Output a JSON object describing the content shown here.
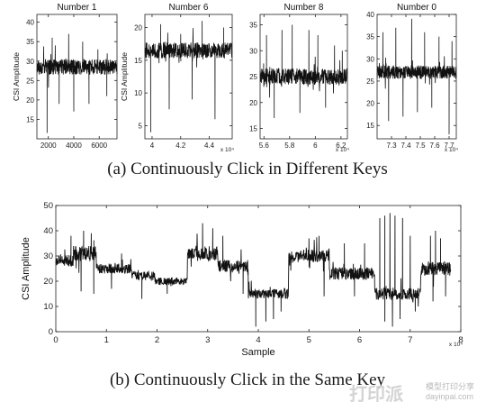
{
  "figure": {
    "caption_a": "(a) Continuously Click in Different Keys",
    "caption_b": "(b) Continuously Click in the Same Key",
    "watermark_text": "模型打印分享",
    "watermark_url": "dayinpai.com",
    "watermark_logo": "打印派"
  },
  "chart_data": [
    {
      "type": "line",
      "title": "Number 1",
      "ylabel": "CSI Amplitude",
      "xlabel": "",
      "xlim": [
        1100,
        7400
      ],
      "ylim": [
        10,
        42
      ],
      "xticks": [
        2000,
        4000,
        6000
      ],
      "xtick_labels": [
        "2000",
        "4000",
        "6000"
      ],
      "yticks": [
        15,
        20,
        25,
        30,
        35,
        40
      ],
      "ytick_labels": [
        "15",
        "20",
        "25",
        "30",
        "35",
        "40"
      ],
      "x_multiplier": "",
      "baseline": 28.5,
      "noise": 2.0,
      "spikes": [
        {
          "x": 1900,
          "y": 11.5
        },
        {
          "x": 2300,
          "y": 36
        },
        {
          "x": 2850,
          "y": 19
        },
        {
          "x": 3600,
          "y": 37
        },
        {
          "x": 4000,
          "y": 17
        },
        {
          "x": 4700,
          "y": 35
        },
        {
          "x": 5200,
          "y": 19
        },
        {
          "x": 5900,
          "y": 33
        },
        {
          "x": 6600,
          "y": 21
        }
      ],
      "series": [
        {
          "values": []
        }
      ]
    },
    {
      "type": "line",
      "title": "Number 6",
      "ylabel": "CSI Amplitude",
      "xlabel": "",
      "xlim": [
        3.95,
        4.56
      ],
      "ylim": [
        3,
        22
      ],
      "xticks": [
        4,
        4.2,
        4.4
      ],
      "xtick_labels": [
        "4",
        "4.2",
        "4.4"
      ],
      "yticks": [
        5,
        10,
        15,
        20
      ],
      "ytick_labels": [
        "5",
        "10",
        "15",
        "20"
      ],
      "x_multiplier": "x 10⁴",
      "baseline": 16.5,
      "noise": 1.2,
      "spikes": [
        {
          "x": 3.99,
          "y": 4
        },
        {
          "x": 4.06,
          "y": 20.5
        },
        {
          "x": 4.12,
          "y": 7.5
        },
        {
          "x": 4.2,
          "y": 19
        },
        {
          "x": 4.28,
          "y": 9
        },
        {
          "x": 4.35,
          "y": 21
        },
        {
          "x": 4.44,
          "y": 6
        },
        {
          "x": 4.5,
          "y": 20
        }
      ],
      "series": [
        {
          "values": []
        }
      ]
    },
    {
      "type": "line",
      "title": "Number 8",
      "ylabel": "",
      "xlabel": "",
      "xlim": [
        5.57,
        6.25
      ],
      "ylim": [
        13,
        37
      ],
      "xticks": [
        5.6,
        5.8,
        6,
        6.2
      ],
      "xtick_labels": [
        "5.6",
        "5.8",
        "6",
        "6.2"
      ],
      "yticks": [
        15,
        20,
        25,
        30,
        35
      ],
      "ytick_labels": [
        "15",
        "20",
        "25",
        "30",
        "35"
      ],
      "x_multiplier": "x 10⁴",
      "baseline": 25,
      "noise": 1.6,
      "spikes": [
        {
          "x": 5.62,
          "y": 33
        },
        {
          "x": 5.68,
          "y": 17
        },
        {
          "x": 5.74,
          "y": 34
        },
        {
          "x": 5.82,
          "y": 35
        },
        {
          "x": 5.88,
          "y": 18
        },
        {
          "x": 5.95,
          "y": 34
        },
        {
          "x": 6.02,
          "y": 33
        },
        {
          "x": 6.08,
          "y": 19
        },
        {
          "x": 6.15,
          "y": 31
        },
        {
          "x": 6.21,
          "y": 30
        }
      ],
      "series": [
        {
          "values": []
        }
      ]
    },
    {
      "type": "line",
      "title": "Number 0",
      "ylabel": "",
      "xlabel": "",
      "xlim": [
        7.2,
        7.75
      ],
      "ylim": [
        12,
        40
      ],
      "xticks": [
        7.3,
        7.4,
        7.5,
        7.6,
        7.7
      ],
      "xtick_labels": [
        "7.3",
        "7.4",
        "7.5",
        "7.6",
        "7.7"
      ],
      "yticks": [
        15,
        20,
        25,
        30,
        35,
        40
      ],
      "ytick_labels": [
        "15",
        "20",
        "25",
        "30",
        "35",
        "40"
      ],
      "x_multiplier": "x 10⁴",
      "baseline": 27,
      "noise": 1.5,
      "spikes": [
        {
          "x": 7.24,
          "y": 36
        },
        {
          "x": 7.28,
          "y": 16
        },
        {
          "x": 7.33,
          "y": 37
        },
        {
          "x": 7.38,
          "y": 17
        },
        {
          "x": 7.44,
          "y": 39
        },
        {
          "x": 7.48,
          "y": 18
        },
        {
          "x": 7.53,
          "y": 36
        },
        {
          "x": 7.58,
          "y": 19
        },
        {
          "x": 7.63,
          "y": 35
        },
        {
          "x": 7.7,
          "y": 13
        },
        {
          "x": 7.72,
          "y": 34
        }
      ],
      "series": [
        {
          "values": []
        }
      ]
    },
    {
      "type": "line",
      "title": "",
      "ylabel": "CSI Amplitude",
      "xlabel": "Sample",
      "xlim": [
        0,
        8
      ],
      "ylim": [
        0,
        50
      ],
      "xticks": [
        0,
        1,
        2,
        3,
        4,
        5,
        6,
        7,
        8
      ],
      "xtick_labels": [
        "0",
        "1",
        "2",
        "3",
        "4",
        "5",
        "6",
        "7",
        "8"
      ],
      "yticks": [
        0,
        10,
        20,
        30,
        40,
        50
      ],
      "ytick_labels": [
        "0",
        "10",
        "20",
        "30",
        "40",
        "50"
      ],
      "x_multiplier": "x 10⁴",
      "segments": [
        {
          "x0": 0.0,
          "x1": 0.35,
          "level": 28,
          "noise": 2.5
        },
        {
          "x0": 0.35,
          "x1": 0.8,
          "level": 31,
          "noise": 3.0
        },
        {
          "x0": 0.8,
          "x1": 1.5,
          "level": 25,
          "noise": 2.0
        },
        {
          "x0": 1.5,
          "x1": 1.95,
          "level": 22,
          "noise": 1.8
        },
        {
          "x0": 1.95,
          "x1": 2.6,
          "level": 20,
          "noise": 1.5
        },
        {
          "x0": 2.6,
          "x1": 3.2,
          "level": 31,
          "noise": 3.0
        },
        {
          "x0": 3.2,
          "x1": 3.8,
          "level": 26,
          "noise": 2.5
        },
        {
          "x0": 3.8,
          "x1": 4.6,
          "level": 15,
          "noise": 2.0
        },
        {
          "x0": 4.6,
          "x1": 5.4,
          "level": 30,
          "noise": 2.5
        },
        {
          "x0": 5.4,
          "x1": 6.3,
          "level": 23,
          "noise": 2.5
        },
        {
          "x0": 6.3,
          "x1": 7.2,
          "level": 15,
          "noise": 2.5
        },
        {
          "x0": 7.2,
          "x1": 7.8,
          "level": 25,
          "noise": 3.0
        }
      ],
      "spikes": [
        {
          "x": 0.3,
          "y": 38
        },
        {
          "x": 0.55,
          "y": 40
        },
        {
          "x": 0.7,
          "y": 39
        },
        {
          "x": 0.5,
          "y": 16
        },
        {
          "x": 0.75,
          "y": 15
        },
        {
          "x": 1.1,
          "y": 17
        },
        {
          "x": 1.3,
          "y": 31
        },
        {
          "x": 1.7,
          "y": 13
        },
        {
          "x": 2.2,
          "y": 15
        },
        {
          "x": 2.9,
          "y": 43
        },
        {
          "x": 3.1,
          "y": 41
        },
        {
          "x": 3.3,
          "y": 38
        },
        {
          "x": 3.7,
          "y": 15
        },
        {
          "x": 3.95,
          "y": 2
        },
        {
          "x": 4.15,
          "y": 4
        },
        {
          "x": 4.3,
          "y": 5
        },
        {
          "x": 4.45,
          "y": 8
        },
        {
          "x": 5.0,
          "y": 37
        },
        {
          "x": 5.2,
          "y": 38
        },
        {
          "x": 5.3,
          "y": 14
        },
        {
          "x": 5.7,
          "y": 35
        },
        {
          "x": 5.9,
          "y": 14
        },
        {
          "x": 6.1,
          "y": 35
        },
        {
          "x": 6.4,
          "y": 45
        },
        {
          "x": 6.5,
          "y": 46
        },
        {
          "x": 6.6,
          "y": 47
        },
        {
          "x": 6.7,
          "y": 46
        },
        {
          "x": 6.85,
          "y": 45
        },
        {
          "x": 6.5,
          "y": 4
        },
        {
          "x": 6.65,
          "y": 2
        },
        {
          "x": 6.8,
          "y": 5
        },
        {
          "x": 7.0,
          "y": 38
        },
        {
          "x": 7.1,
          "y": 8
        },
        {
          "x": 7.4,
          "y": 38
        },
        {
          "x": 7.5,
          "y": 40
        },
        {
          "x": 7.6,
          "y": 37
        },
        {
          "x": 7.45,
          "y": 12
        },
        {
          "x": 7.7,
          "y": 14
        }
      ],
      "series": [
        {
          "values": []
        }
      ]
    }
  ]
}
